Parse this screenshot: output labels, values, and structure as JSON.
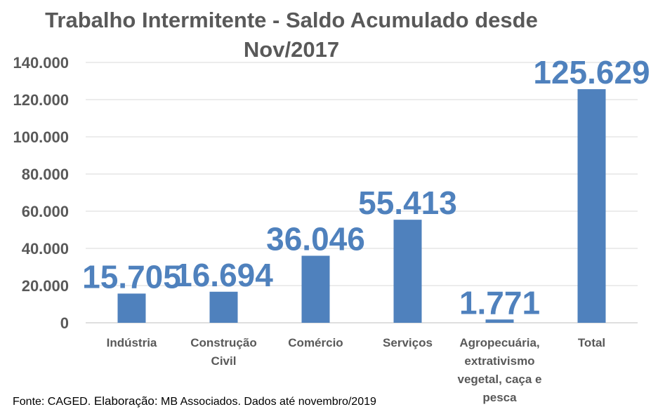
{
  "chart_data": {
    "type": "bar",
    "title_line1": "Trabalho Intermitente - Saldo Acumulado desde",
    "title_line2": "Nov/2017",
    "categories": [
      [
        "Indústria"
      ],
      [
        "Construção",
        "Civil"
      ],
      [
        "Comércio"
      ],
      [
        "Serviços"
      ],
      [
        "Agropecuária,",
        "extrativismo",
        "vegetal, caça e",
        "pesca"
      ],
      [
        "Total"
      ]
    ],
    "values": [
      15705,
      16694,
      36046,
      55413,
      1771,
      125629
    ],
    "value_labels": [
      "15.705",
      "16.694",
      "36.046",
      "55.413",
      "1.771",
      "125.629"
    ],
    "y_ticks": [
      0,
      20000,
      40000,
      60000,
      80000,
      100000,
      120000,
      140000
    ],
    "y_tick_labels": [
      "0",
      "20.000",
      "40.000",
      "60.000",
      "80.000",
      "100.000",
      "120.000",
      "140.000"
    ],
    "ylim": [
      0,
      140000
    ],
    "grid": true,
    "xlabel": "",
    "ylabel": ""
  },
  "colors": {
    "bar": "#4F81BD",
    "label": "#4F81BD",
    "axis_text": "#595959",
    "grid": "#D9D9D9"
  },
  "source": {
    "prefix": "Fonte: CAGED.",
    "elab": " Elaboração:",
    "rest": " MB Associados. Dados até novembro/2019"
  }
}
